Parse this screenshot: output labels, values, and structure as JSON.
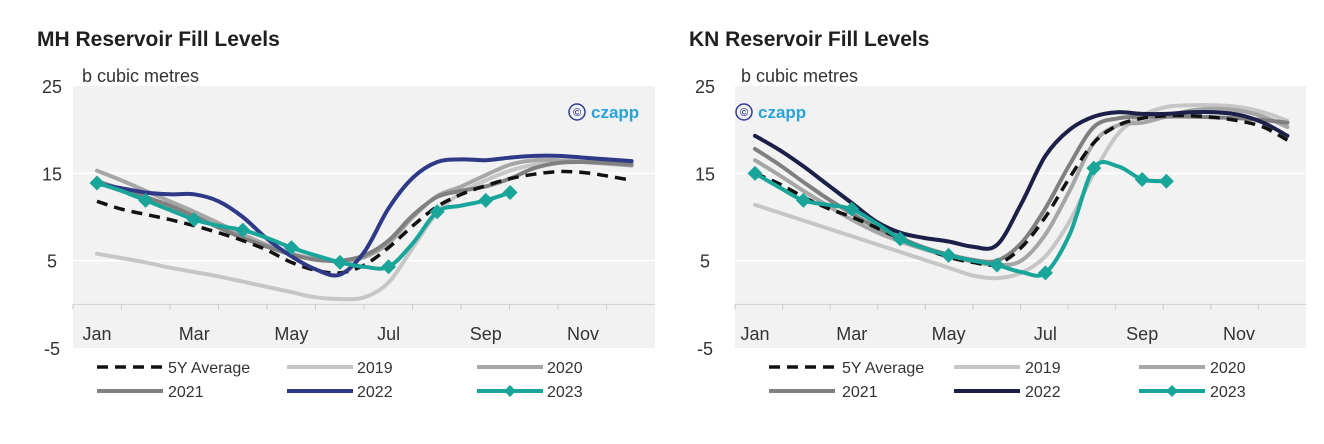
{
  "chart_data": [
    {
      "type": "line",
      "title": "MH Reservoir Fill Levels",
      "ylabel": "b cubic metres",
      "watermark": "czapp",
      "ylim": [
        -5,
        25
      ],
      "yticks": [
        "25",
        "15",
        "5",
        "-5"
      ],
      "xticks": [
        "Jan",
        "Mar",
        "May",
        "Jul",
        "Sep",
        "Nov"
      ],
      "x_unit": "month",
      "legend_position": "bottom",
      "colors": {
        "5Y Average": "#111111",
        "2019": "#c6c6c6",
        "2020": "#a6a6a6",
        "2021": "#808080",
        "2022": "#2e3a87",
        "2023": "#1aa59a"
      },
      "series": [
        {
          "name": "5Y Average",
          "x": [
            1,
            1.5,
            2,
            2.5,
            3,
            3.5,
            4,
            4.5,
            5,
            5.5,
            6,
            6.5,
            7,
            7.5,
            8,
            8.5,
            9,
            9.5,
            10,
            10.5,
            11,
            11.5,
            12
          ],
          "values": [
            11.8,
            10.9,
            10.3,
            9.7,
            9.0,
            8.2,
            7.3,
            6.2,
            4.8,
            3.9,
            3.6,
            4.5,
            6.5,
            9.0,
            11.2,
            12.6,
            13.6,
            14.4,
            14.9,
            15.2,
            15.1,
            14.7,
            14.2
          ]
        },
        {
          "name": "2019",
          "x": [
            1,
            1.5,
            2,
            2.5,
            3,
            3.5,
            4,
            4.5,
            5,
            5.5,
            6,
            6.5,
            7,
            7.5,
            8,
            8.5,
            9,
            9.5,
            10,
            10.5,
            11,
            11.5,
            12
          ],
          "values": [
            5.8,
            5.3,
            4.8,
            4.2,
            3.7,
            3.2,
            2.6,
            2.0,
            1.4,
            0.8,
            0.6,
            0.8,
            2.5,
            6.5,
            10.5,
            12.8,
            14.2,
            15.3,
            16.0,
            16.4,
            16.4,
            16.2,
            16.0
          ]
        },
        {
          "name": "2020",
          "x": [
            1,
            1.5,
            2,
            2.5,
            3,
            3.5,
            4,
            4.5,
            5,
            5.5,
            6,
            6.5,
            7,
            7.5,
            8,
            8.5,
            9,
            9.5,
            10,
            10.5,
            11,
            11.5,
            12
          ],
          "values": [
            15.3,
            14.2,
            13.0,
            11.8,
            10.6,
            9.3,
            8.0,
            6.8,
            5.8,
            5.2,
            4.9,
            5.4,
            7.0,
            10.0,
            12.4,
            13.5,
            14.8,
            16.0,
            16.5,
            16.5,
            16.3,
            16.1,
            15.9
          ]
        },
        {
          "name": "2021",
          "x": [
            1,
            1.5,
            2,
            2.5,
            3,
            3.5,
            4,
            4.5,
            5,
            5.5,
            6,
            6.5,
            7,
            7.5,
            8,
            8.5,
            9,
            9.5,
            10,
            10.5,
            11,
            11.5,
            12
          ],
          "values": [
            14.1,
            13.2,
            12.3,
            11.3,
            10.1,
            8.8,
            7.6,
            6.6,
            5.7,
            5.1,
            5.0,
            5.6,
            7.3,
            10.2,
            12.3,
            13.0,
            13.5,
            14.4,
            15.6,
            16.2,
            16.3,
            16.2,
            16.0
          ]
        },
        {
          "name": "2022",
          "x": [
            1,
            1.5,
            2,
            2.5,
            3,
            3.5,
            4,
            4.5,
            5,
            5.5,
            6,
            6.5,
            7,
            7.5,
            8,
            8.5,
            9,
            9.5,
            10,
            10.5,
            11,
            11.5,
            12
          ],
          "values": [
            13.8,
            13.3,
            12.8,
            12.6,
            12.6,
            11.8,
            10.0,
            7.5,
            5.5,
            4.0,
            3.4,
            6.0,
            11.0,
            14.5,
            16.3,
            16.6,
            16.5,
            16.8,
            17.0,
            17.0,
            16.8,
            16.6,
            16.4
          ]
        },
        {
          "name": "2023",
          "x": [
            1,
            1.5,
            2,
            2.5,
            3,
            3.5,
            4,
            4.5,
            5,
            5.5,
            6,
            6.5,
            7,
            7.5,
            8,
            8.5,
            9,
            9.5
          ],
          "values": [
            13.9,
            13.0,
            11.9,
            10.8,
            9.7,
            9.0,
            8.5,
            7.6,
            6.5,
            5.6,
            4.8,
            4.3,
            4.3,
            7.0,
            10.6,
            11.3,
            11.9,
            12.8
          ],
          "markers": [
            1,
            2,
            3,
            4,
            5,
            6,
            7,
            8,
            9,
            9.5
          ]
        }
      ]
    },
    {
      "type": "line",
      "title": "KN Reservoir Fill Levels",
      "ylabel": "b cubic metres",
      "watermark": "czapp",
      "ylim": [
        -5,
        25
      ],
      "yticks": [
        "25",
        "15",
        "5",
        "-5"
      ],
      "xticks": [
        "Jan",
        "Mar",
        "May",
        "Jul",
        "Sep",
        "Nov"
      ],
      "x_unit": "month",
      "legend_position": "bottom",
      "colors": {
        "5Y Average": "#111111",
        "2019": "#c6c6c6",
        "2020": "#a6a6a6",
        "2021": "#808080",
        "2022": "#1c2048",
        "2023": "#1aa59a"
      },
      "series": [
        {
          "name": "5Y Average",
          "x": [
            1,
            1.5,
            2,
            2.5,
            3,
            3.5,
            4,
            4.5,
            5,
            5.5,
            6,
            6.5,
            7,
            7.5,
            8,
            8.5,
            9,
            9.5,
            10,
            10.5,
            11,
            11.5,
            12
          ],
          "values": [
            15.0,
            13.8,
            12.3,
            11.0,
            10.0,
            8.8,
            7.5,
            6.4,
            5.4,
            4.8,
            4.6,
            6.5,
            10.0,
            14.5,
            18.5,
            20.5,
            21.3,
            21.6,
            21.6,
            21.4,
            21.0,
            20.3,
            18.8
          ]
        },
        {
          "name": "2019",
          "x": [
            1,
            1.5,
            2,
            2.5,
            3,
            3.5,
            4,
            4.5,
            5,
            5.5,
            6,
            6.5,
            7,
            7.5,
            8,
            8.5,
            9,
            9.5,
            10,
            10.5,
            11,
            11.5,
            12
          ],
          "values": [
            11.4,
            10.5,
            9.6,
            8.7,
            7.8,
            6.9,
            6.0,
            5.1,
            4.2,
            3.3,
            3.0,
            3.6,
            5.5,
            9.5,
            15.0,
            19.5,
            21.6,
            22.6,
            22.8,
            22.8,
            22.6,
            22.0,
            21.0
          ]
        },
        {
          "name": "2020",
          "x": [
            1,
            1.5,
            2,
            2.5,
            3,
            3.5,
            4,
            4.5,
            5,
            5.5,
            6,
            6.5,
            7,
            7.5,
            8,
            8.5,
            9,
            9.5,
            10,
            10.5,
            11,
            11.5,
            12
          ],
          "values": [
            16.5,
            14.8,
            13.0,
            11.3,
            9.7,
            8.3,
            7.2,
            6.3,
            5.5,
            4.9,
            4.5,
            5.0,
            8.0,
            13.0,
            18.5,
            20.5,
            20.8,
            21.5,
            22.2,
            22.4,
            22.2,
            21.5,
            20.3
          ]
        },
        {
          "name": "2021",
          "x": [
            1,
            1.5,
            2,
            2.5,
            3,
            3.5,
            4,
            4.5,
            5,
            5.5,
            6,
            6.5,
            7,
            7.5,
            8,
            8.5,
            9,
            9.5,
            10,
            10.5,
            11,
            11.5,
            12
          ],
          "values": [
            17.8,
            16.0,
            14.0,
            12.1,
            10.4,
            8.8,
            7.6,
            6.5,
            5.7,
            5.1,
            5.0,
            7.0,
            11.0,
            16.0,
            20.3,
            21.3,
            21.5,
            21.5,
            21.5,
            21.4,
            21.3,
            21.1,
            20.8
          ]
        },
        {
          "name": "2022",
          "x": [
            1,
            1.5,
            2,
            2.5,
            3,
            3.5,
            4,
            4.5,
            5,
            5.5,
            6,
            6.5,
            7,
            7.5,
            8,
            8.5,
            9,
            9.5,
            10,
            10.5,
            11,
            11.5,
            12
          ],
          "values": [
            19.3,
            17.7,
            15.8,
            13.7,
            11.6,
            9.5,
            8.2,
            7.6,
            7.2,
            6.6,
            6.8,
            11.5,
            17.0,
            20.0,
            21.5,
            22.0,
            21.8,
            21.8,
            22.0,
            22.0,
            21.7,
            20.8,
            19.3
          ]
        },
        {
          "name": "2023",
          "x": [
            1,
            1.5,
            2,
            2.5,
            3,
            3.5,
            4,
            4.5,
            5,
            5.5,
            6,
            6.5,
            7,
            7.5,
            8,
            8.5,
            9,
            9.5
          ],
          "values": [
            15.0,
            13.4,
            11.9,
            11.4,
            10.9,
            9.3,
            7.5,
            6.4,
            5.6,
            5.0,
            4.5,
            3.7,
            3.6,
            8.0,
            15.6,
            15.8,
            14.3,
            14.1
          ],
          "markers": [
            1,
            2,
            3,
            4,
            5,
            6,
            7,
            8,
            9,
            9.5
          ]
        }
      ]
    }
  ]
}
